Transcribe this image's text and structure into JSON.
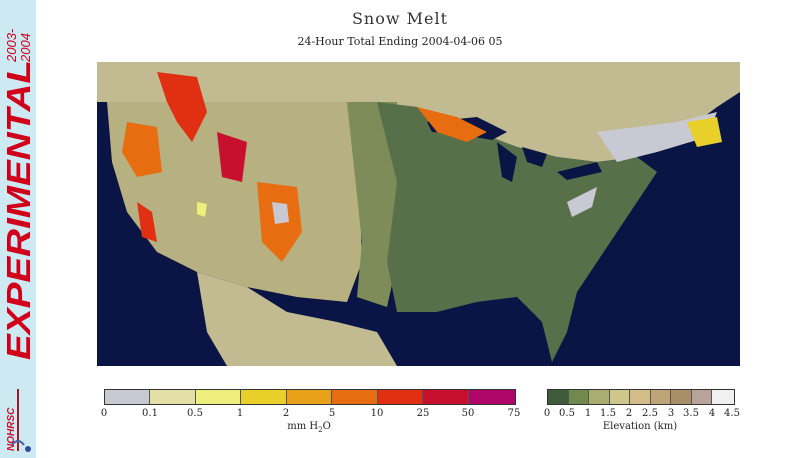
{
  "title": "Snow Melt",
  "subtitle": "24-Hour Total Ending 2004-04-06 05",
  "side_banner": {
    "years": "2003-\n2004",
    "years_line1": "2003-",
    "years_line2": "2004",
    "label": "EXPERIMENTAL",
    "logo_text": "NOHRSC"
  },
  "melt_legend": {
    "unit_main": "mm H",
    "unit_sub": "2",
    "unit_end": "O",
    "ticks": [
      "0",
      "0.1",
      "0.5",
      "1",
      "2",
      "5",
      "10",
      "25",
      "50",
      "75"
    ],
    "colors": [
      "#c9c9d3",
      "#e3e0a6",
      "#eeee7c",
      "#e8cf2a",
      "#e9a11a",
      "#e86c10",
      "#e12f12",
      "#c8102e",
      "#b50e49",
      "#b0066a"
    ]
  },
  "elevation_legend": {
    "title": "Elevation (km)",
    "ticks": [
      "0",
      "0.5",
      "1",
      "1.5",
      "2",
      "2.5",
      "3",
      "3.5",
      "4",
      "4.5"
    ],
    "colors": [
      "#3f5a3a",
      "#6f8a4c",
      "#a9ad6f",
      "#cdc78c",
      "#d2bd88",
      "#bfa477",
      "#a98f68",
      "#b8a39a",
      "#d8cfd8"
    ]
  },
  "map": {
    "ocean_color": "#0a1545",
    "land_color": "#c2bb92",
    "low_color": "#58704a",
    "plains_color": "#7e8c5a"
  }
}
